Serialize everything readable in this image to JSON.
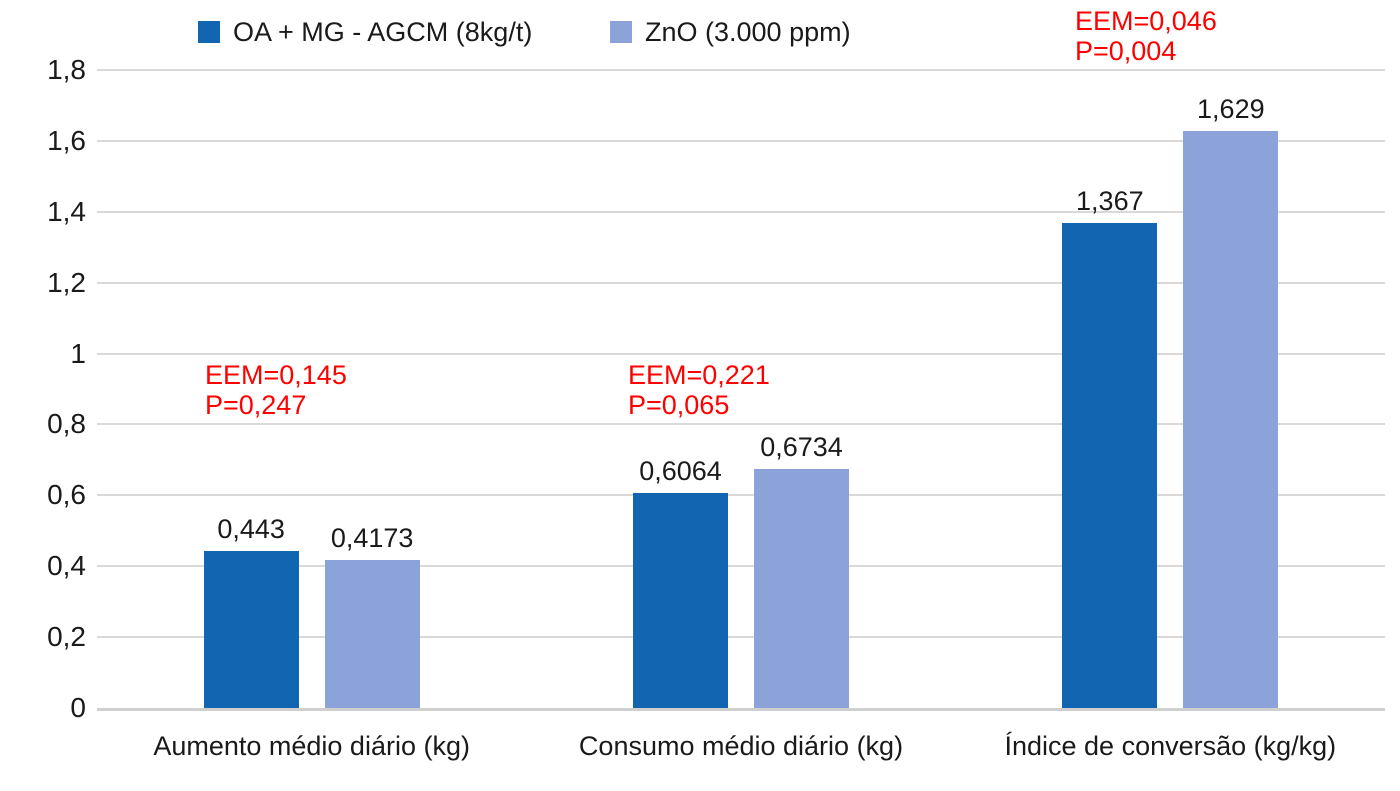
{
  "chart_data": {
    "type": "bar",
    "title": "",
    "xlabel": "",
    "ylabel": "",
    "categories": [
      "Aumento médio diário (kg)",
      "Consumo médio diário (kg)",
      "Índice de conversão (kg/kg)"
    ],
    "series": [
      {
        "name": "OA + MG - AGCM (8kg/t)",
        "color": "#1266B1",
        "values": [
          0.443,
          0.6064,
          1.367
        ],
        "value_labels": [
          "0,443",
          "0,6064",
          "1,367"
        ]
      },
      {
        "name": "ZnO (3.000 ppm)",
        "color": "#8CA3D9",
        "values": [
          0.4173,
          0.6734,
          1.629
        ],
        "value_labels": [
          "0,4173",
          "0,6734",
          "1,629"
        ]
      }
    ],
    "annotations": [
      {
        "lines": [
          "EEM=0,145",
          "P=0,247"
        ],
        "group": 0
      },
      {
        "lines": [
          "EEM=0,221",
          "P=0,065"
        ],
        "group": 1
      },
      {
        "lines": [
          "EEM=0,046",
          "P=0,004"
        ],
        "group": 2
      }
    ],
    "y_axis": {
      "min": 0,
      "max": 1.8,
      "step": 0.2,
      "tick_labels": [
        "0",
        "0,2",
        "0,4",
        "0,6",
        "0,8",
        "1",
        "1,2",
        "1,4",
        "1,6",
        "1,8"
      ]
    },
    "grid": true,
    "legend_position": "top",
    "colors": {
      "series1": "#1266B1",
      "series2": "#8CA3D9",
      "gridline": "#D9D9D9",
      "baseline": "#CFCFCF",
      "annotation": "#FF0000",
      "text": "#1a1a1a"
    }
  }
}
